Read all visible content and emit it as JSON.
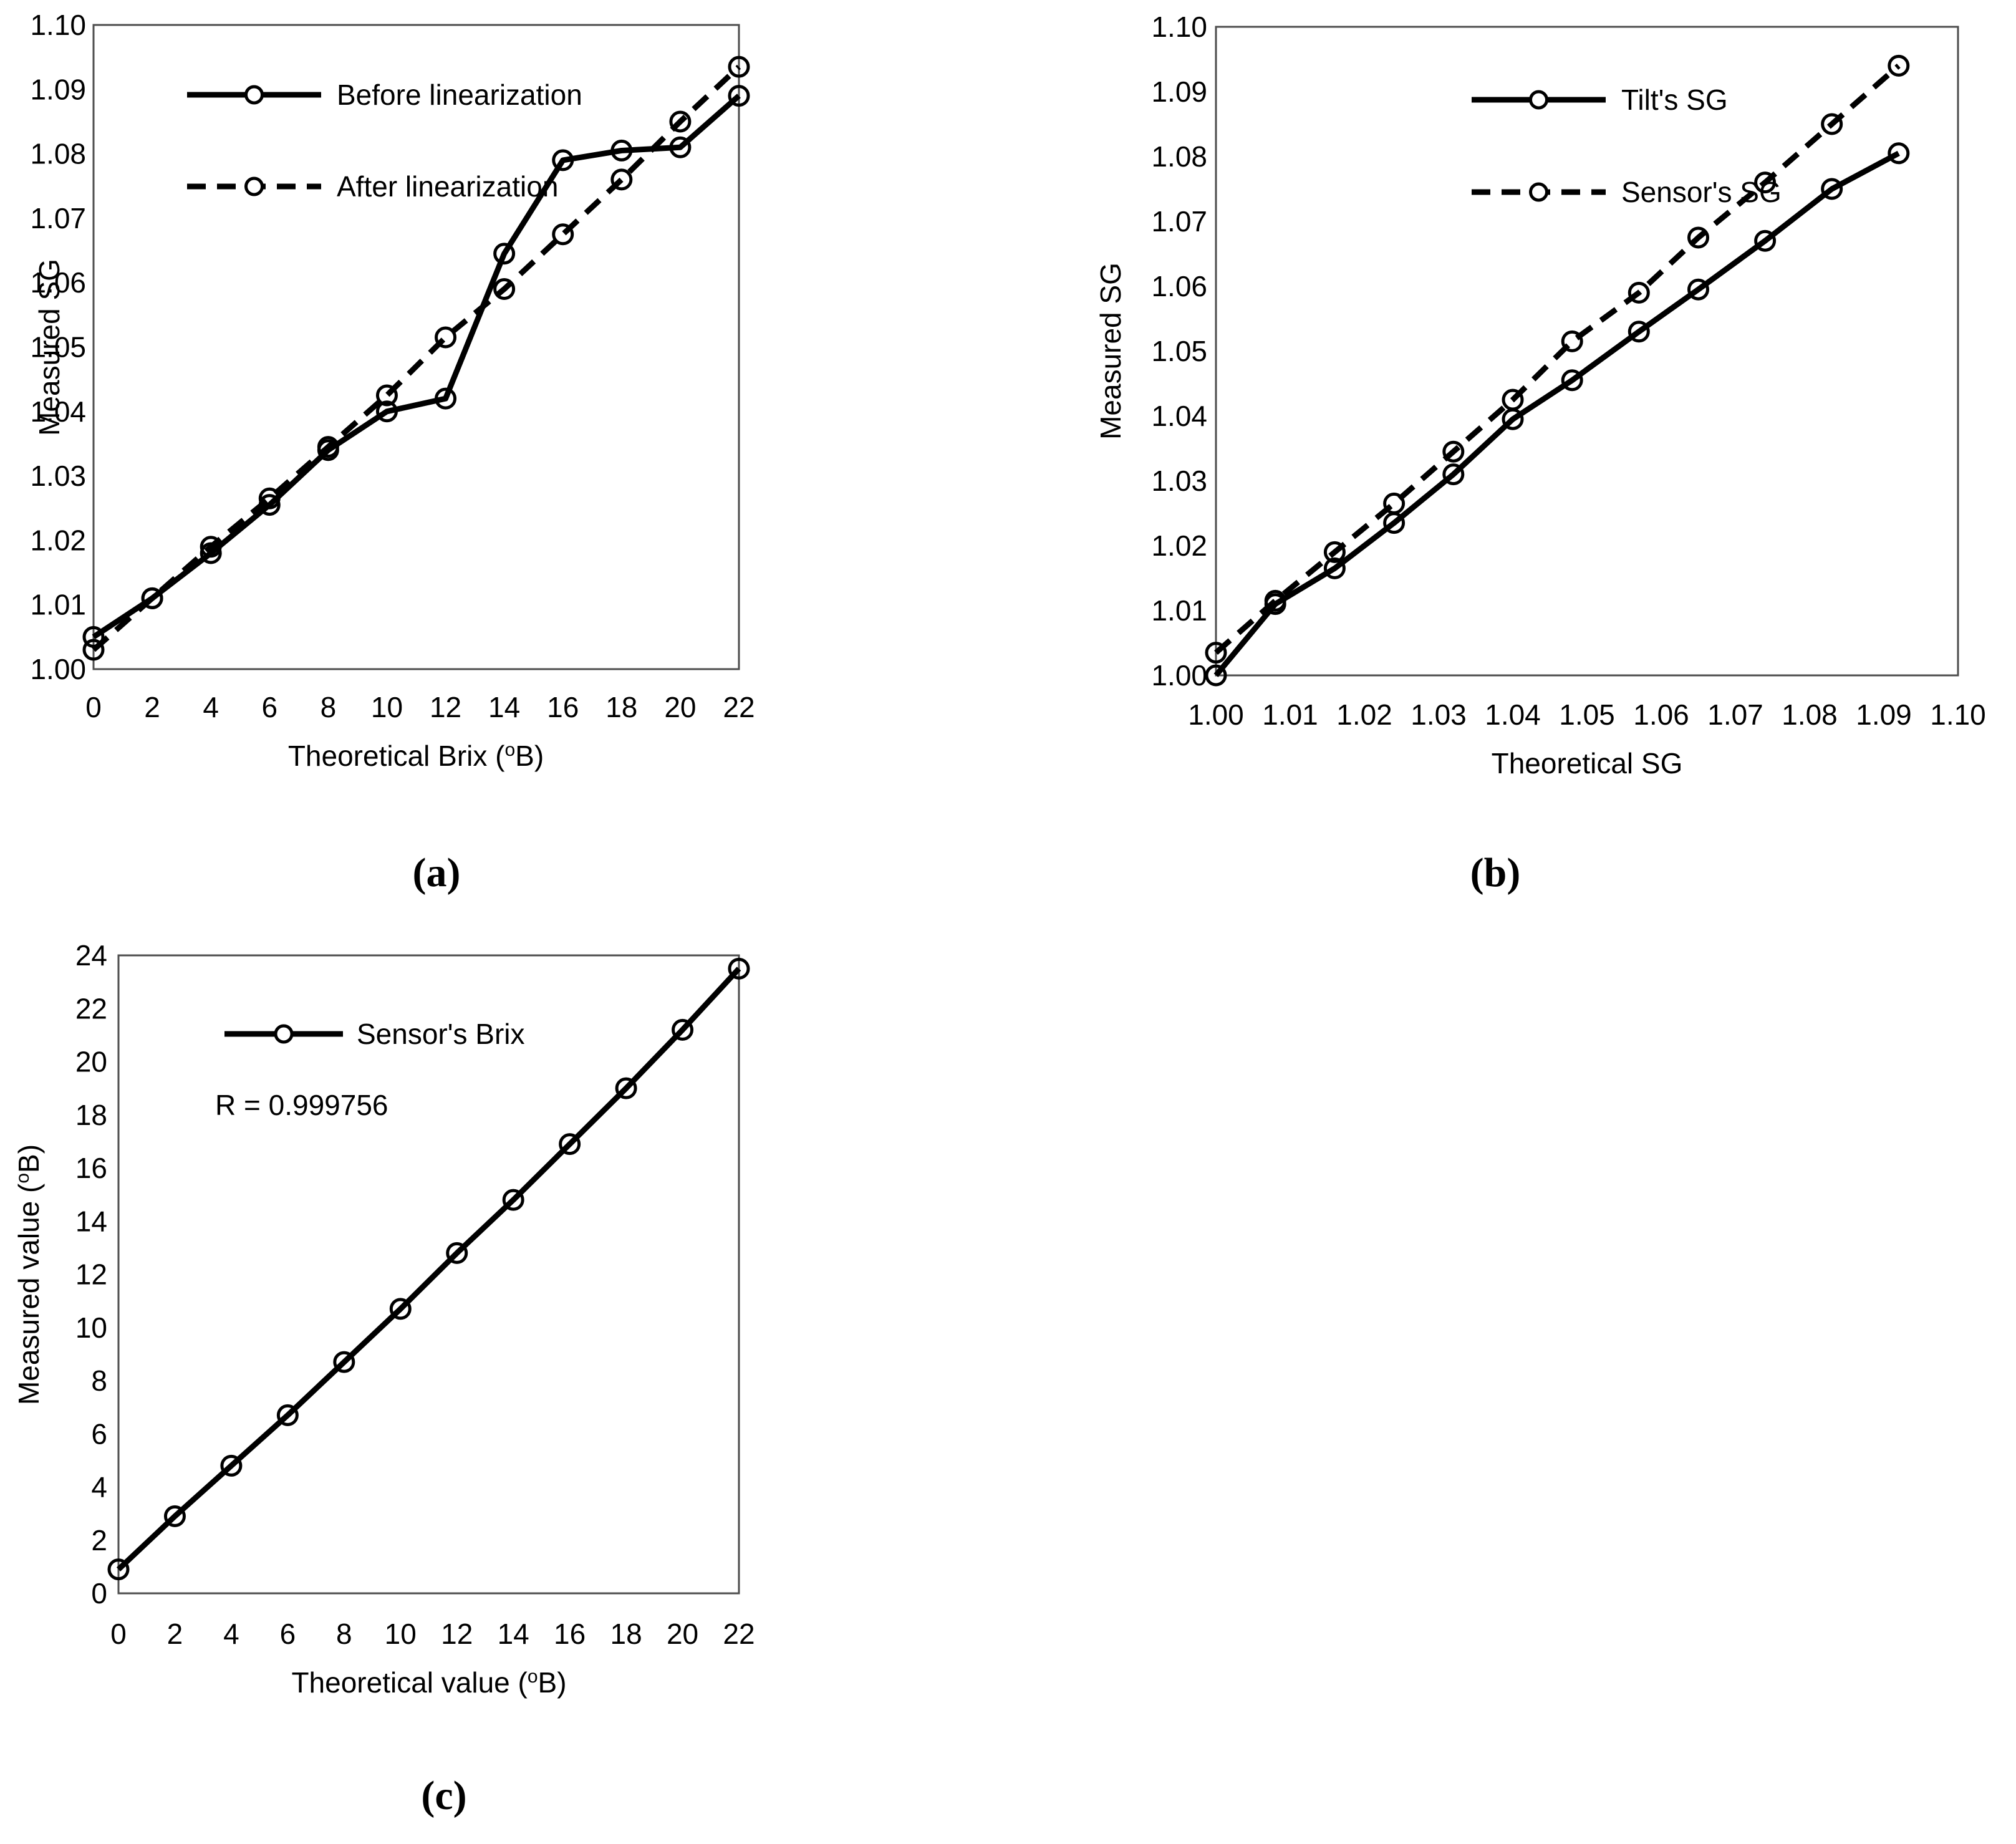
{
  "page": {
    "background": "#ffffff"
  },
  "colors": {
    "line": "#000000",
    "box_border": "#4d4d4d",
    "text": "#000000"
  },
  "chart_data": [
    {
      "id": "a",
      "type": "line",
      "caption": "(a)",
      "title": "",
      "xlabel": "Theoretical Brix (°B)",
      "xlabel_parts": [
        {
          "t": "Theoretical Brix ("
        },
        {
          "t": "o",
          "sup": true
        },
        {
          "t": "B)"
        }
      ],
      "ylabel": "Measured SG",
      "ylabel_parts": [
        {
          "t": "Measured SG"
        }
      ],
      "xticks": {
        "min": 0,
        "max": 22,
        "step": 2,
        "decimals": 0
      },
      "yticks": {
        "min": 1.0,
        "max": 1.1,
        "step": 0.01,
        "decimals": 2
      },
      "grid": false,
      "legend_position": "top-left",
      "x": [
        0,
        2,
        4,
        6,
        8,
        10,
        12,
        14,
        16,
        18,
        20,
        22
      ],
      "series": [
        {
          "name": "Before linearization",
          "line": "solid",
          "marker": "circle",
          "values": [
            1.005,
            1.011,
            1.018,
            1.0255,
            1.034,
            1.04,
            1.042,
            1.0645,
            1.079,
            1.0805,
            1.081,
            1.089
          ]
        },
        {
          "name": "After linearization",
          "line": "dashed",
          "marker": "circle",
          "values": [
            1.003,
            1.011,
            1.019,
            1.0265,
            1.0345,
            1.0425,
            1.0515,
            1.059,
            1.0675,
            1.076,
            1.085,
            1.0935
          ]
        }
      ],
      "annotation": null
    },
    {
      "id": "b",
      "type": "line",
      "caption": "(b)",
      "title": "",
      "xlabel": "Theoretical SG",
      "xlabel_parts": [
        {
          "t": "Theoretical SG"
        }
      ],
      "ylabel": "Measured SG",
      "ylabel_parts": [
        {
          "t": "Measured SG"
        }
      ],
      "xticks": {
        "min": 1.0,
        "max": 1.1,
        "step": 0.01,
        "decimals": 2
      },
      "yticks": {
        "min": 1.0,
        "max": 1.1,
        "step": 0.01,
        "decimals": 2
      },
      "grid": false,
      "legend_position": "top-left",
      "x": [
        1.0,
        1.008,
        1.016,
        1.024,
        1.032,
        1.04,
        1.048,
        1.057,
        1.065,
        1.074,
        1.083,
        1.092
      ],
      "series": [
        {
          "name": "Tilt's SG",
          "line": "solid",
          "marker": "circle",
          "values": [
            1.0,
            1.011,
            1.0165,
            1.0235,
            1.031,
            1.0395,
            1.0455,
            1.053,
            1.0595,
            1.067,
            1.075,
            1.0805
          ]
        },
        {
          "name": "Sensor's SG",
          "line": "dashed",
          "marker": "circle",
          "values": [
            1.0035,
            1.0115,
            1.019,
            1.0265,
            1.0345,
            1.0425,
            1.0515,
            1.059,
            1.0675,
            1.076,
            1.085,
            1.094
          ]
        }
      ],
      "annotation": null
    },
    {
      "id": "c",
      "type": "line",
      "caption": "(c)",
      "title": "",
      "xlabel": "Theoretical value (°B)",
      "xlabel_parts": [
        {
          "t": "Theoretical value  ("
        },
        {
          "t": "o",
          "sup": true
        },
        {
          "t": "B)"
        }
      ],
      "ylabel": "Measured value (°B)",
      "ylabel_parts": [
        {
          "t": "Measured value ("
        },
        {
          "t": "o",
          "sup": true
        },
        {
          "t": "B)"
        }
      ],
      "xticks": {
        "min": 0,
        "max": 22,
        "step": 2,
        "decimals": 0
      },
      "yticks": {
        "min": 0,
        "max": 24,
        "step": 2,
        "decimals": 0
      },
      "grid": false,
      "legend_position": "top-left",
      "x": [
        0,
        2,
        4,
        6,
        8,
        10,
        12,
        14,
        16,
        18,
        20,
        22
      ],
      "series": [
        {
          "name": "Sensor's Brix",
          "line": "solid",
          "marker": "circle",
          "values": [
            0.9,
            2.9,
            4.8,
            6.7,
            8.7,
            10.7,
            12.8,
            14.8,
            16.9,
            19.0,
            21.2,
            23.5
          ]
        }
      ],
      "annotation": {
        "text": "R = 0.999756"
      }
    }
  ]
}
